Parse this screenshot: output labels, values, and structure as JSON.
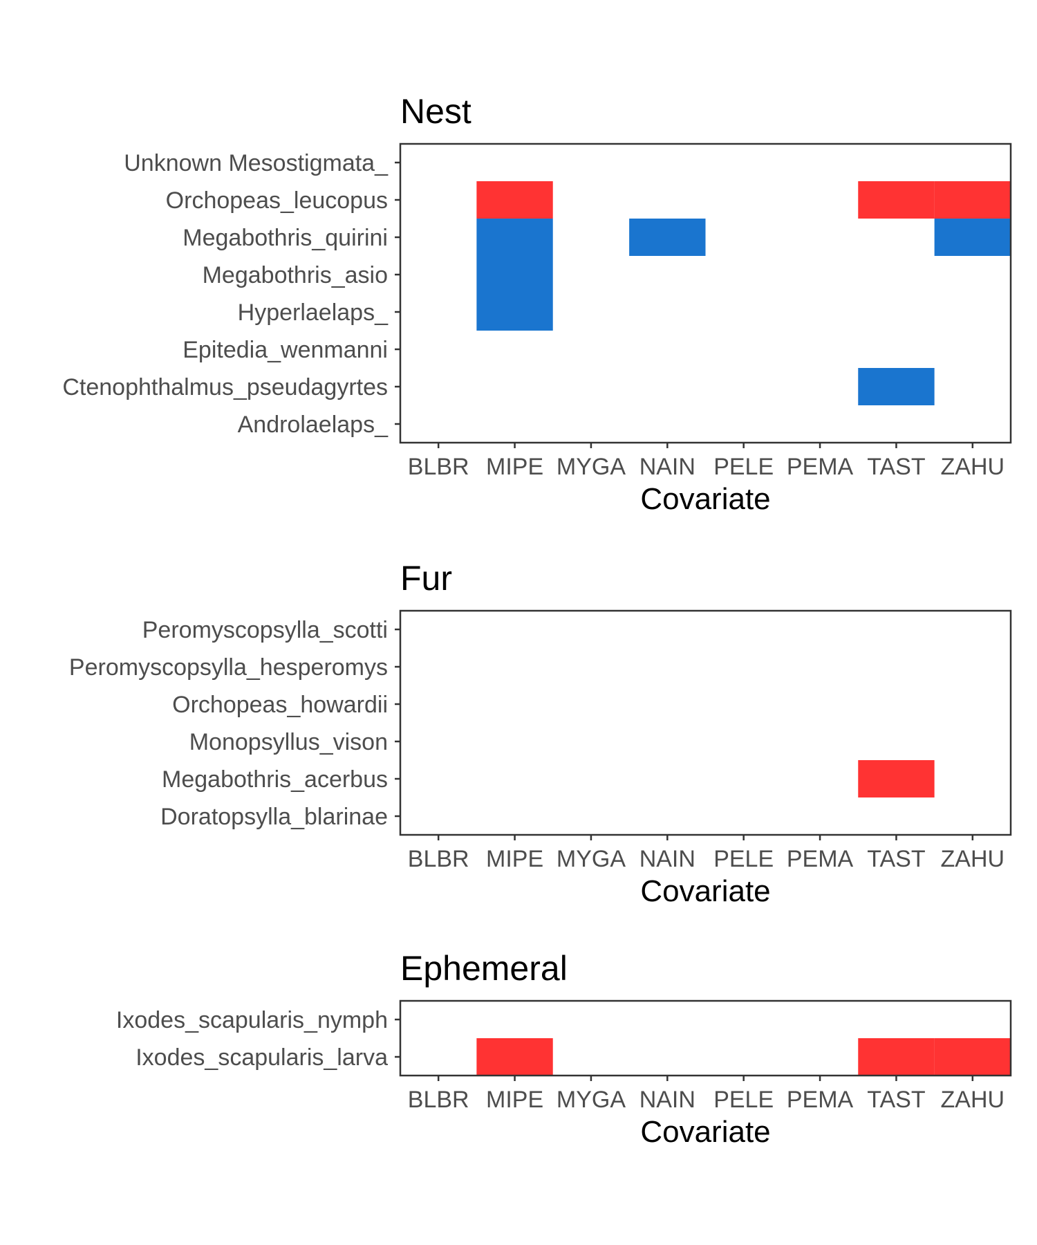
{
  "chart_data": [
    {
      "type": "heatmap",
      "title": "Nest",
      "xlabel": "Covariate",
      "ylabel": "",
      "x_categories": [
        "BLBR",
        "MIPE",
        "MYGA",
        "NAIN",
        "PELE",
        "PEMA",
        "TAST",
        "ZAHU"
      ],
      "y_categories": [
        "Androlaelaps_",
        "Ctenophthalmus_pseudagyrtes",
        "Epitedia_wenmanni",
        "Hyperlaelaps_",
        "Megabothris_asio",
        "Megabothris_quirini",
        "Orchopeas_leucopus",
        "Unknown Mesostigmata_"
      ],
      "cells": [
        {
          "x": "MIPE",
          "y": "Orchopeas_leucopus",
          "color": "#ff3333"
        },
        {
          "x": "TAST",
          "y": "Orchopeas_leucopus",
          "color": "#ff3333"
        },
        {
          "x": "ZAHU",
          "y": "Orchopeas_leucopus",
          "color": "#ff3333"
        },
        {
          "x": "MIPE",
          "y": "Megabothris_quirini",
          "color": "#1a75cf"
        },
        {
          "x": "NAIN",
          "y": "Megabothris_quirini",
          "color": "#1a75cf"
        },
        {
          "x": "ZAHU",
          "y": "Megabothris_quirini",
          "color": "#1a75cf"
        },
        {
          "x": "MIPE",
          "y": "Megabothris_asio",
          "color": "#1a75cf"
        },
        {
          "x": "MIPE",
          "y": "Hyperlaelaps_",
          "color": "#1a75cf"
        },
        {
          "x": "TAST",
          "y": "Ctenophthalmus_pseudagyrtes",
          "color": "#1a75cf"
        }
      ]
    },
    {
      "type": "heatmap",
      "title": "Fur",
      "xlabel": "Covariate",
      "ylabel": "",
      "x_categories": [
        "BLBR",
        "MIPE",
        "MYGA",
        "NAIN",
        "PELE",
        "PEMA",
        "TAST",
        "ZAHU"
      ],
      "y_categories": [
        "Doratopsylla_blarinae",
        "Megabothris_acerbus",
        "Monopsyllus_vison",
        "Orchopeas_howardii",
        "Peromyscopsylla_hesperomys",
        "Peromyscopsylla_scotti"
      ],
      "cells": [
        {
          "x": "TAST",
          "y": "Megabothris_acerbus",
          "color": "#ff3333"
        }
      ]
    },
    {
      "type": "heatmap",
      "title": "Ephemeral",
      "xlabel": "Covariate",
      "ylabel": "",
      "x_categories": [
        "BLBR",
        "MIPE",
        "MYGA",
        "NAIN",
        "PELE",
        "PEMA",
        "TAST",
        "ZAHU"
      ],
      "y_categories": [
        "Ixodes_scapularis_larva",
        "Ixodes_scapularis_nymph"
      ],
      "cells": [
        {
          "x": "MIPE",
          "y": "Ixodes_scapularis_larva",
          "color": "#ff3333"
        },
        {
          "x": "TAST",
          "y": "Ixodes_scapularis_larva",
          "color": "#ff3333"
        },
        {
          "x": "ZAHU",
          "y": "Ixodes_scapularis_larva",
          "color": "#ff3333"
        }
      ]
    }
  ]
}
